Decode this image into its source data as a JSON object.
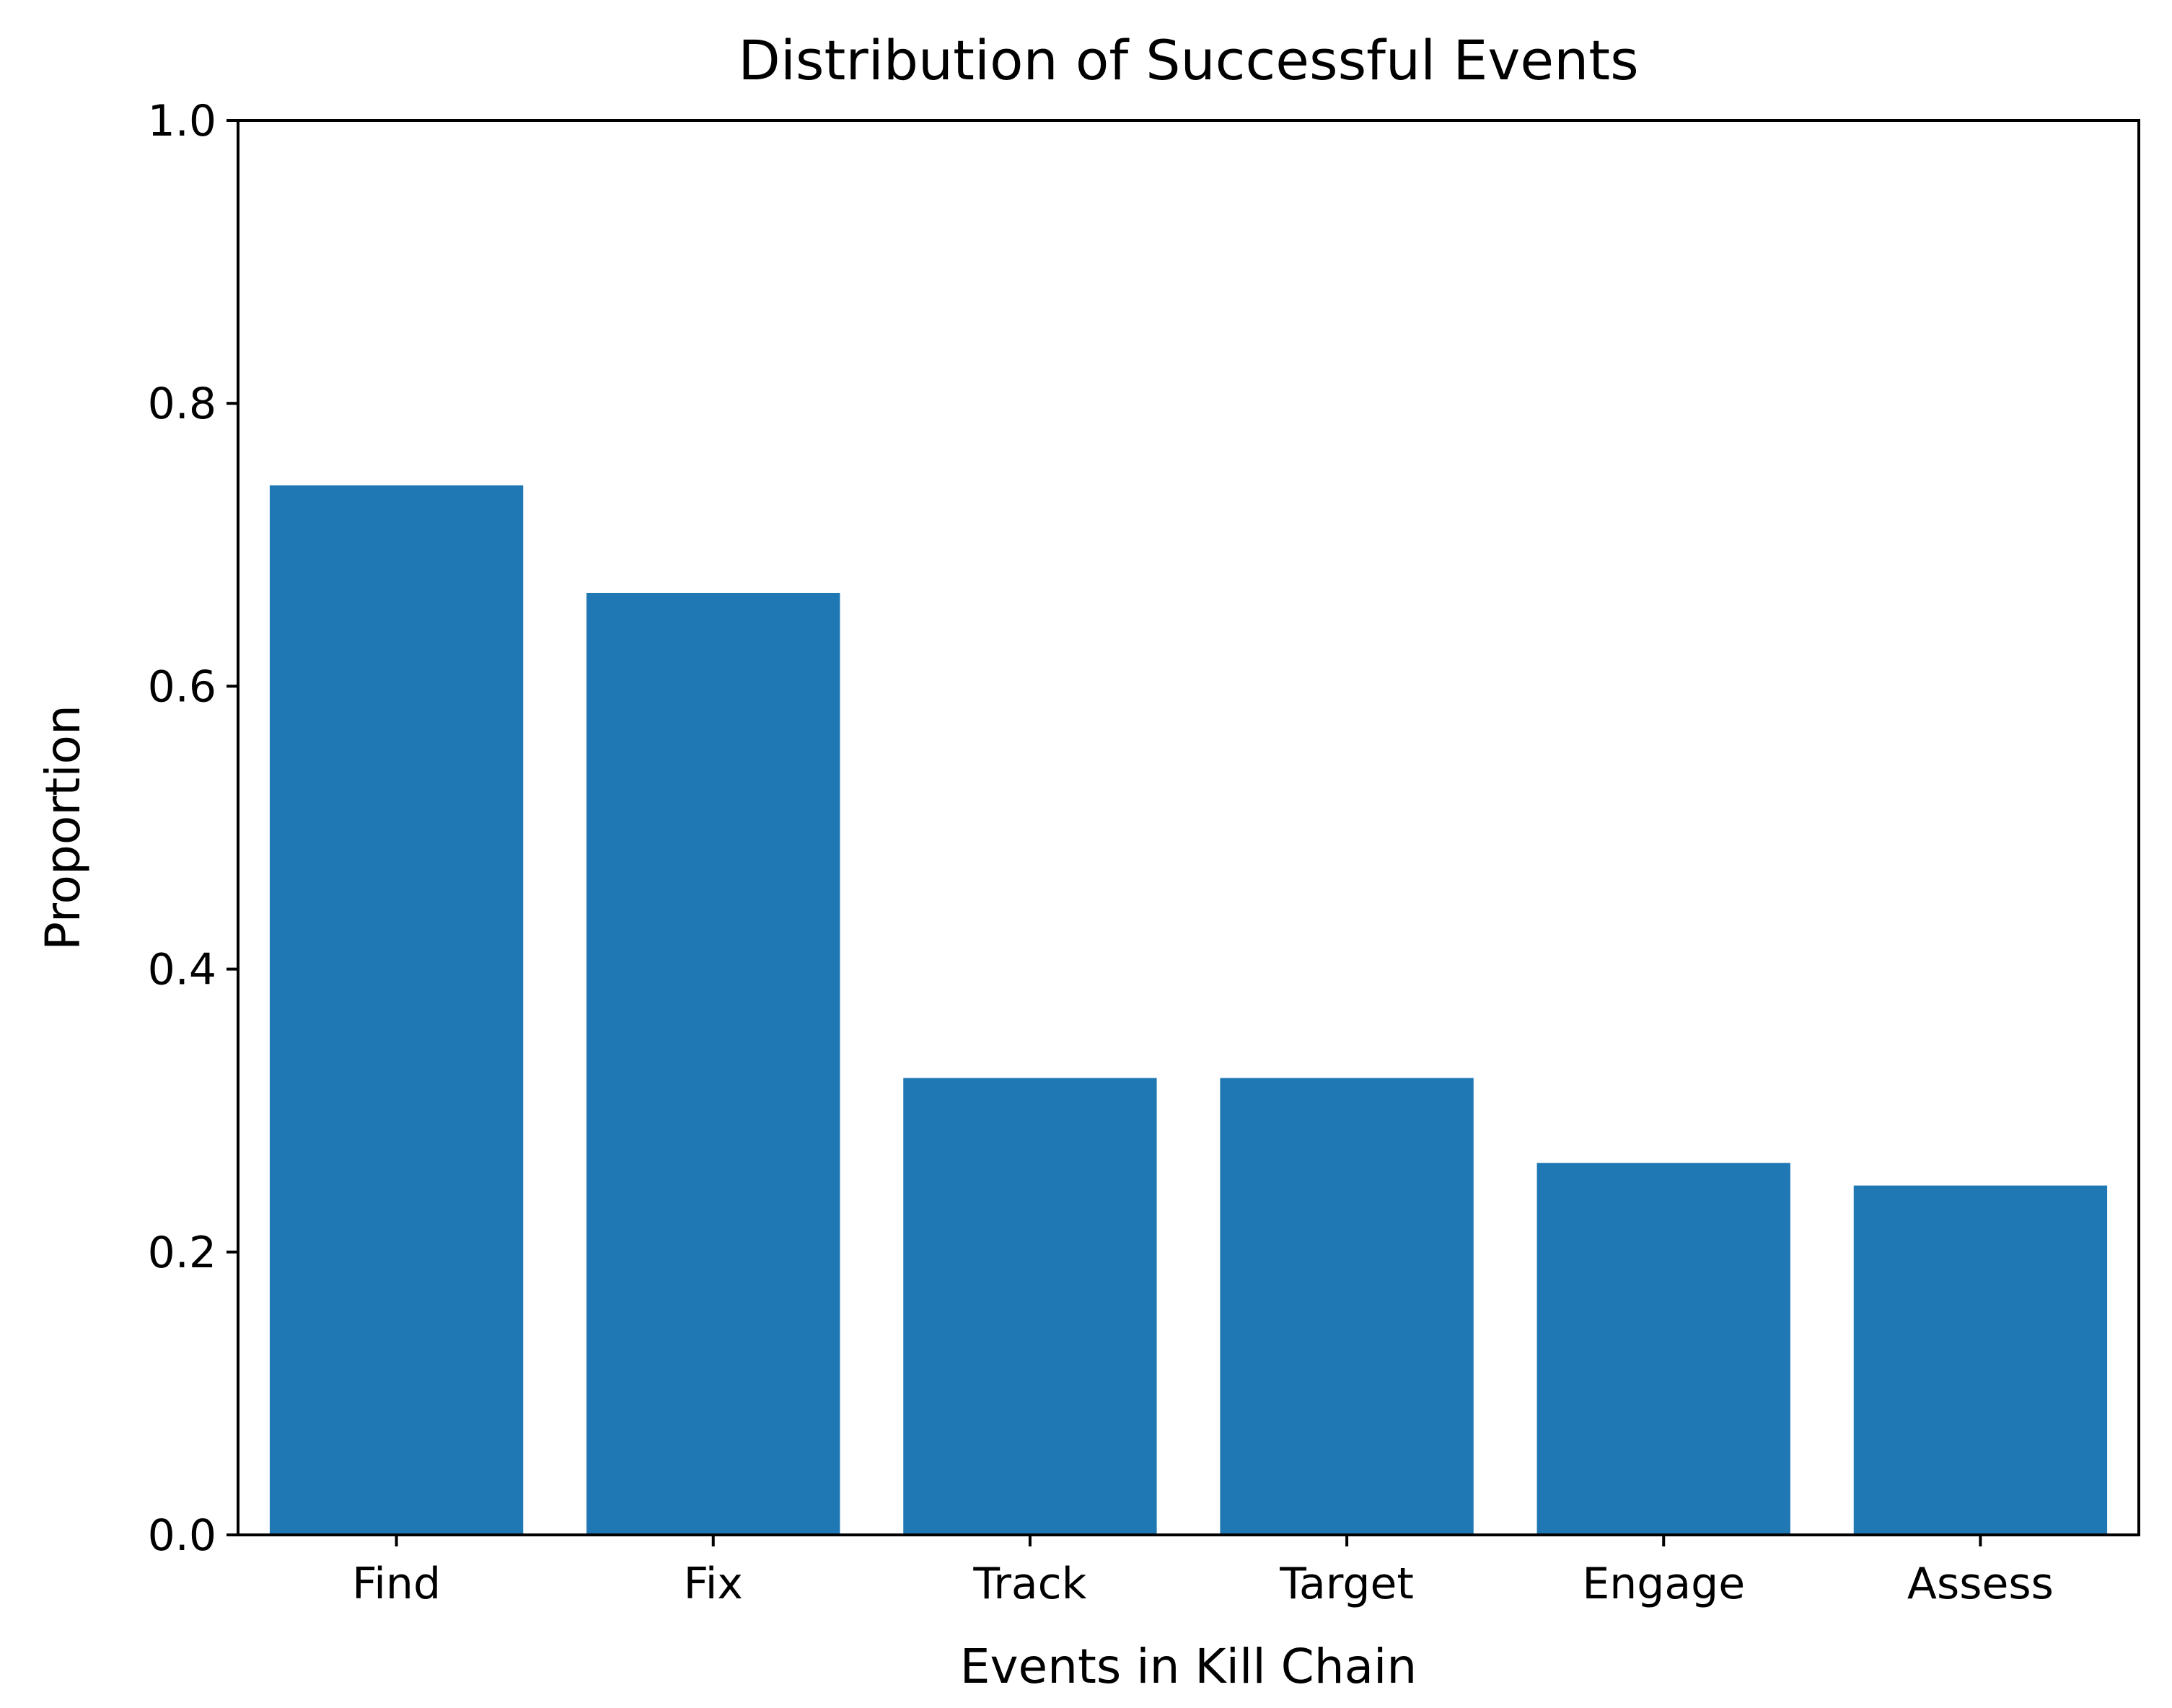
{
  "chart_data": {
    "type": "bar",
    "title": "Distribution of Successful Events",
    "xlabel": "Events in Kill Chain",
    "ylabel": "Proportion",
    "categories": [
      "Find",
      "Fix",
      "Track",
      "Target",
      "Engage",
      "Assess"
    ],
    "values": [
      0.742,
      0.666,
      0.323,
      0.323,
      0.263,
      0.247
    ],
    "ylim": [
      0.0,
      1.0
    ],
    "yticks": [
      "0.0",
      "0.2",
      "0.4",
      "0.6",
      "0.8",
      "1.0"
    ],
    "grid": false,
    "bar_color": "#1f77b4"
  }
}
